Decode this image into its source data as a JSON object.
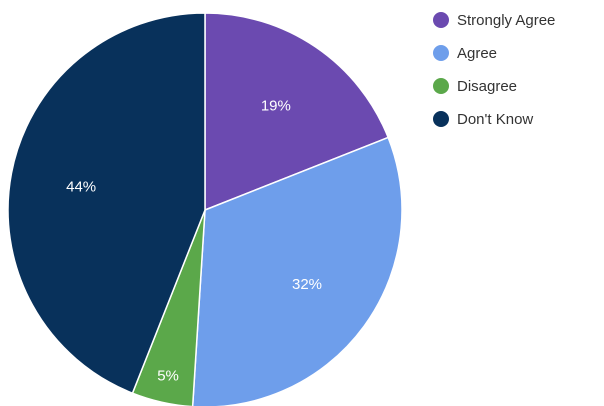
{
  "chart_data": {
    "type": "pie",
    "title": "",
    "legend_position": "right",
    "start_angle_deg": 0,
    "direction": "clockwise",
    "slices": [
      {
        "label": "Strongly Agree",
        "value": 19,
        "value_label": "19%",
        "color": "#6B4AB0"
      },
      {
        "label": "Agree",
        "value": 32,
        "value_label": "32%",
        "color": "#6E9EEB"
      },
      {
        "label": "Disagree",
        "value": 5,
        "value_label": "5%",
        "color": "#5BA84A"
      },
      {
        "label": "Don't Know",
        "value": 44,
        "value_label": "44%",
        "color": "#08315B"
      }
    ]
  }
}
